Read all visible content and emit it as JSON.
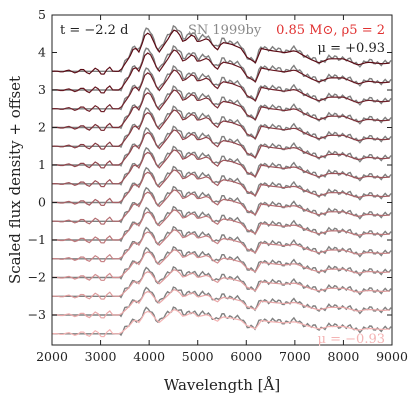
{
  "chart_data": {
    "type": "line",
    "xlabel": "Wavelength [Å]",
    "ylabel": "Scaled flux density + offset",
    "xlim": [
      2000,
      9000
    ],
    "ylim": [
      -3.8,
      5
    ],
    "xticks": [
      2000,
      3000,
      4000,
      5000,
      6000,
      7000,
      8000,
      9000
    ],
    "yticks": [
      -3,
      -2,
      -1,
      0,
      1,
      2,
      3,
      4,
      5
    ],
    "legend_position": "top",
    "annotations": {
      "time": "t = −2.2 d",
      "observed": "SN 1999by",
      "model": "0.85 M⊙, ρ5 = 2",
      "mu_top": "μ = +0.93",
      "mu_bottom": "μ = −0.93"
    },
    "observed_color": "#808080",
    "model_color_top": "#5a0a14",
    "model_color_bottom": "#f4b3b3",
    "offsets": [
      3.5,
      3.0,
      2.5,
      2.0,
      1.5,
      1.0,
      0.5,
      0.0,
      -0.5,
      -1.0,
      -1.5,
      -2.0,
      -2.5,
      -3.0,
      -3.5
    ],
    "series": [
      {
        "x": [
          3400,
          3600,
          3700,
          3800,
          3900,
          4000,
          4200,
          4400,
          4500,
          4600,
          4700,
          4900,
          5000,
          5200,
          5400,
          5500,
          5700,
          5900,
          6000,
          6200,
          6300,
          6500,
          6800,
          7000,
          7300,
          7500,
          7700,
          8000,
          8300,
          8500,
          8800,
          9000
        ],
        "y": [
          0.0,
          0.35,
          0.6,
          0.45,
          0.85,
          0.95,
          0.45,
          0.8,
          1.0,
          0.95,
          0.7,
          0.9,
          0.7,
          0.8,
          0.5,
          0.7,
          0.65,
          0.55,
          0.35,
          0.2,
          0.55,
          0.5,
          0.45,
          0.5,
          0.3,
          0.2,
          0.3,
          0.3,
          0.15,
          0.22,
          0.18,
          0.2
        ]
      }
    ]
  }
}
